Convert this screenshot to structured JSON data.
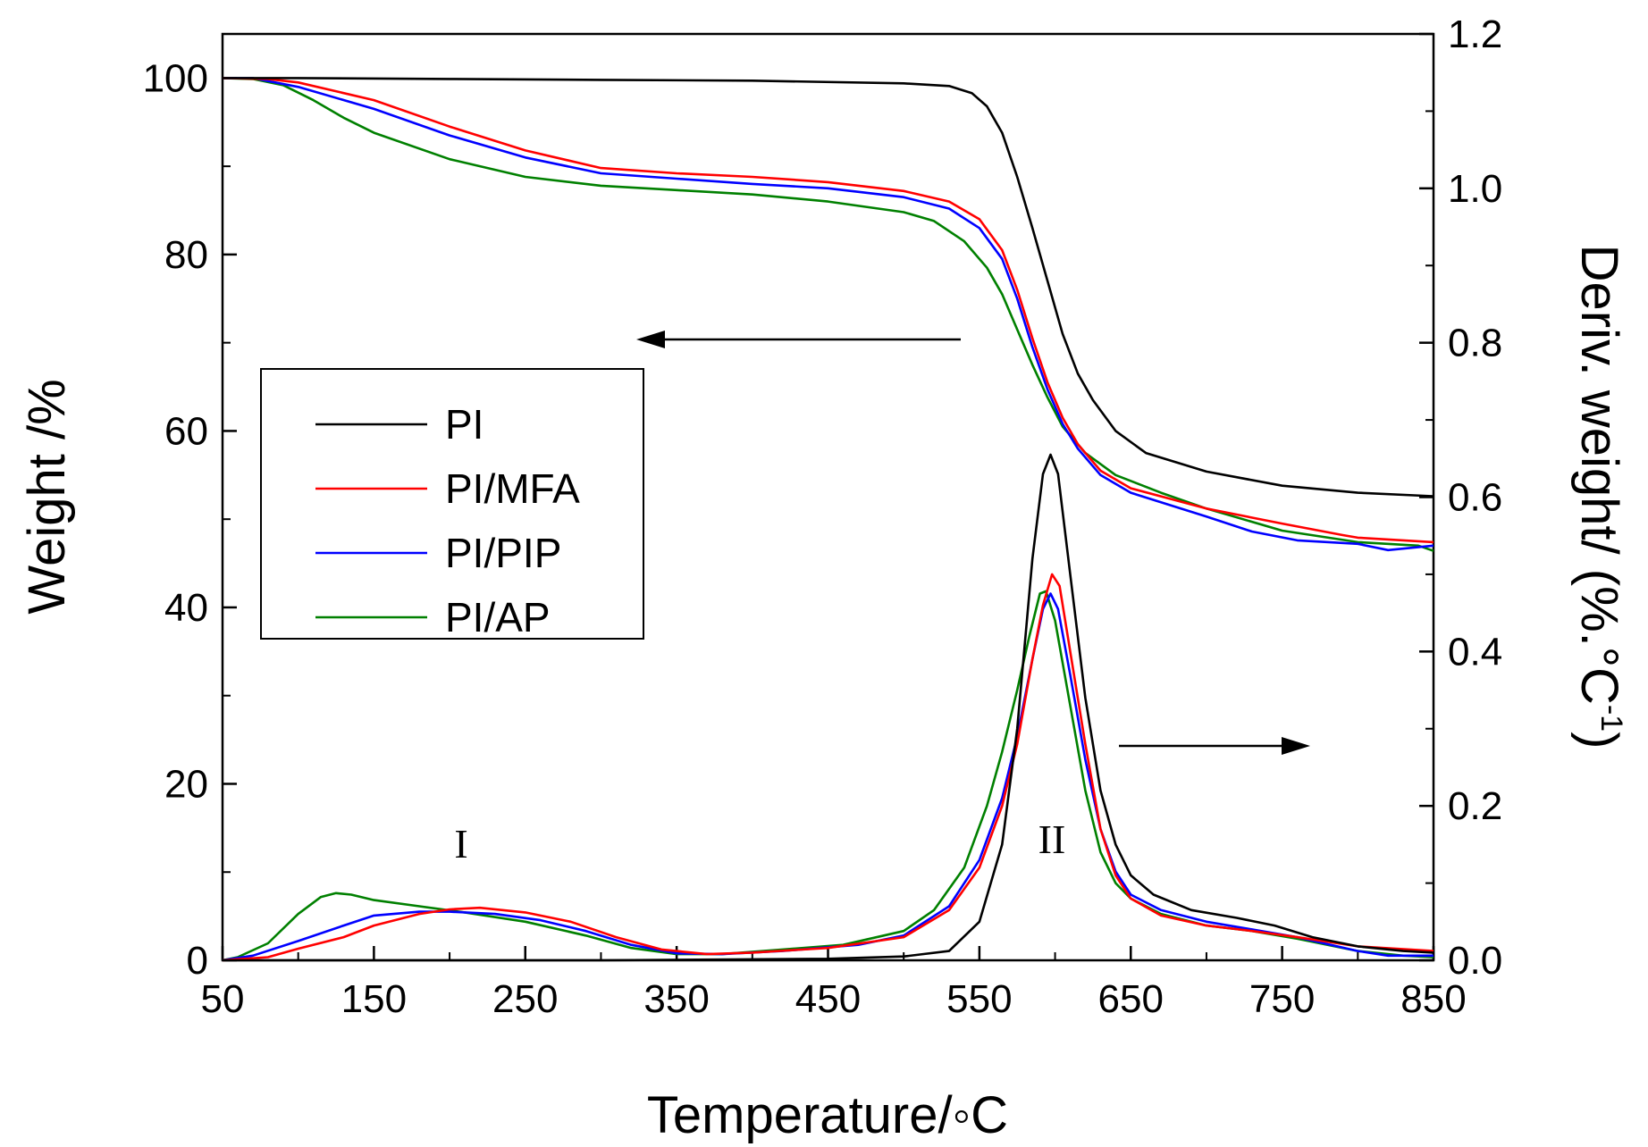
{
  "chart_data": {
    "type": "line",
    "title": "",
    "xlabel": "Temperature/◦C",
    "ylabel_left": "Weight /%",
    "ylabel_right_main": "Deriv. weight/ (%.°C",
    "ylabel_right_sup": "-1",
    "ylabel_right_close": ")",
    "xlim": [
      50,
      850
    ],
    "ylim_left": [
      0,
      105
    ],
    "ylim_right": [
      0,
      1.2
    ],
    "xticks": [
      "50",
      "150",
      "250",
      "350",
      "450",
      "550",
      "650",
      "750",
      "850"
    ],
    "yticks_left": [
      "0",
      "20",
      "40",
      "60",
      "80",
      "100"
    ],
    "yticks_right": [
      "0.0",
      "0.2",
      "0.4",
      "0.6",
      "0.8",
      "1.0",
      "1.2"
    ],
    "legend_position": "middle-left",
    "annotations": {
      "peak1": "I",
      "peak2": "II"
    },
    "colors": {
      "PI": "#000000",
      "PI/MFA": "#ff0000",
      "PI/PIP": "#0000ff",
      "PI/AP": "#008000"
    },
    "series": [
      {
        "name": "PI",
        "color": "#000000",
        "weight": [
          [
            50,
            100
          ],
          [
            100,
            100
          ],
          [
            200,
            99.9
          ],
          [
            300,
            99.8
          ],
          [
            400,
            99.7
          ],
          [
            500,
            99.4
          ],
          [
            530,
            99.1
          ],
          [
            545,
            98.3
          ],
          [
            555,
            96.8
          ],
          [
            565,
            93.8
          ],
          [
            575,
            88.8
          ],
          [
            585,
            83
          ],
          [
            595,
            77
          ],
          [
            605,
            71
          ],
          [
            615,
            66.5
          ],
          [
            625,
            63.5
          ],
          [
            640,
            60
          ],
          [
            660,
            57.5
          ],
          [
            700,
            55.4
          ],
          [
            750,
            53.8
          ],
          [
            800,
            53
          ],
          [
            850,
            52.6
          ]
        ],
        "deriv": [
          [
            50,
            0
          ],
          [
            300,
            0
          ],
          [
            450,
            0.002
          ],
          [
            500,
            0.005
          ],
          [
            530,
            0.012
          ],
          [
            550,
            0.05
          ],
          [
            565,
            0.15
          ],
          [
            575,
            0.3
          ],
          [
            585,
            0.52
          ],
          [
            592,
            0.63
          ],
          [
            597,
            0.655
          ],
          [
            602,
            0.63
          ],
          [
            610,
            0.5
          ],
          [
            620,
            0.34
          ],
          [
            630,
            0.22
          ],
          [
            640,
            0.15
          ],
          [
            650,
            0.11
          ],
          [
            665,
            0.085
          ],
          [
            690,
            0.065
          ],
          [
            720,
            0.055
          ],
          [
            745,
            0.045
          ],
          [
            770,
            0.03
          ],
          [
            800,
            0.018
          ],
          [
            830,
            0.012
          ],
          [
            850,
            0.01
          ]
        ]
      },
      {
        "name": "PI/MFA",
        "color": "#ff0000",
        "weight": [
          [
            50,
            100
          ],
          [
            80,
            99.9
          ],
          [
            100,
            99.5
          ],
          [
            150,
            97.5
          ],
          [
            200,
            94.5
          ],
          [
            250,
            91.8
          ],
          [
            300,
            89.8
          ],
          [
            350,
            89.2
          ],
          [
            400,
            88.8
          ],
          [
            450,
            88.2
          ],
          [
            500,
            87.2
          ],
          [
            530,
            86
          ],
          [
            550,
            84
          ],
          [
            565,
            80.5
          ],
          [
            575,
            76
          ],
          [
            585,
            70.5
          ],
          [
            595,
            65.5
          ],
          [
            605,
            61.5
          ],
          [
            615,
            58.5
          ],
          [
            630,
            55.5
          ],
          [
            650,
            53.5
          ],
          [
            700,
            51.2
          ],
          [
            750,
            49.5
          ],
          [
            790,
            48.2
          ],
          [
            800,
            47.9
          ],
          [
            850,
            47.4
          ]
        ],
        "deriv": [
          [
            50,
            0
          ],
          [
            80,
            0.004
          ],
          [
            100,
            0.015
          ],
          [
            130,
            0.03
          ],
          [
            150,
            0.045
          ],
          [
            180,
            0.06
          ],
          [
            200,
            0.066
          ],
          [
            220,
            0.068
          ],
          [
            250,
            0.062
          ],
          [
            280,
            0.05
          ],
          [
            310,
            0.03
          ],
          [
            340,
            0.014
          ],
          [
            370,
            0.008
          ],
          [
            400,
            0.01
          ],
          [
            450,
            0.016
          ],
          [
            500,
            0.03
          ],
          [
            530,
            0.065
          ],
          [
            550,
            0.12
          ],
          [
            565,
            0.2
          ],
          [
            575,
            0.28
          ],
          [
            585,
            0.39
          ],
          [
            592,
            0.46
          ],
          [
            598,
            0.5
          ],
          [
            603,
            0.485
          ],
          [
            610,
            0.4
          ],
          [
            620,
            0.28
          ],
          [
            630,
            0.17
          ],
          [
            640,
            0.11
          ],
          [
            650,
            0.08
          ],
          [
            670,
            0.058
          ],
          [
            700,
            0.045
          ],
          [
            730,
            0.038
          ],
          [
            760,
            0.03
          ],
          [
            800,
            0.018
          ],
          [
            850,
            0.012
          ]
        ]
      },
      {
        "name": "PI/PIP",
        "color": "#0000ff",
        "weight": [
          [
            50,
            100
          ],
          [
            70,
            100
          ],
          [
            100,
            99
          ],
          [
            150,
            96.5
          ],
          [
            200,
            93.5
          ],
          [
            250,
            91
          ],
          [
            300,
            89.2
          ],
          [
            350,
            88.6
          ],
          [
            400,
            88
          ],
          [
            450,
            87.5
          ],
          [
            500,
            86.5
          ],
          [
            530,
            85.2
          ],
          [
            550,
            83
          ],
          [
            565,
            79.5
          ],
          [
            575,
            75
          ],
          [
            585,
            69.5
          ],
          [
            595,
            64.7
          ],
          [
            605,
            60.8
          ],
          [
            615,
            58
          ],
          [
            630,
            55
          ],
          [
            650,
            53
          ],
          [
            700,
            50.3
          ],
          [
            730,
            48.6
          ],
          [
            760,
            47.6
          ],
          [
            800,
            47.2
          ],
          [
            820,
            46.5
          ],
          [
            850,
            47
          ]
        ],
        "deriv": [
          [
            50,
            0
          ],
          [
            70,
            0.006
          ],
          [
            100,
            0.025
          ],
          [
            130,
            0.045
          ],
          [
            150,
            0.058
          ],
          [
            180,
            0.063
          ],
          [
            200,
            0.063
          ],
          [
            230,
            0.06
          ],
          [
            260,
            0.052
          ],
          [
            290,
            0.038
          ],
          [
            320,
            0.02
          ],
          [
            350,
            0.009
          ],
          [
            380,
            0.008
          ],
          [
            420,
            0.012
          ],
          [
            470,
            0.02
          ],
          [
            500,
            0.032
          ],
          [
            530,
            0.07
          ],
          [
            550,
            0.13
          ],
          [
            565,
            0.21
          ],
          [
            575,
            0.29
          ],
          [
            585,
            0.39
          ],
          [
            592,
            0.455
          ],
          [
            597,
            0.475
          ],
          [
            602,
            0.455
          ],
          [
            610,
            0.37
          ],
          [
            620,
            0.26
          ],
          [
            630,
            0.17
          ],
          [
            640,
            0.115
          ],
          [
            650,
            0.085
          ],
          [
            670,
            0.065
          ],
          [
            700,
            0.05
          ],
          [
            730,
            0.04
          ],
          [
            760,
            0.03
          ],
          [
            800,
            0.012
          ],
          [
            820,
            0.006
          ],
          [
            850,
            0.006
          ]
        ]
      },
      {
        "name": "PI/AP",
        "color": "#008000",
        "weight": [
          [
            50,
            100
          ],
          [
            70,
            99.9
          ],
          [
            90,
            99.2
          ],
          [
            110,
            97.5
          ],
          [
            130,
            95.5
          ],
          [
            150,
            93.8
          ],
          [
            200,
            90.8
          ],
          [
            250,
            88.8
          ],
          [
            300,
            87.8
          ],
          [
            350,
            87.3
          ],
          [
            400,
            86.8
          ],
          [
            450,
            86
          ],
          [
            500,
            84.8
          ],
          [
            520,
            83.8
          ],
          [
            540,
            81.5
          ],
          [
            555,
            78.5
          ],
          [
            565,
            75.5
          ],
          [
            575,
            71.5
          ],
          [
            585,
            67.5
          ],
          [
            595,
            63.8
          ],
          [
            605,
            60.5
          ],
          [
            620,
            57.5
          ],
          [
            640,
            55
          ],
          [
            670,
            53
          ],
          [
            700,
            51.2
          ],
          [
            750,
            48.7
          ],
          [
            800,
            47.4
          ],
          [
            840,
            47
          ],
          [
            850,
            46.4
          ]
        ],
        "deriv": [
          [
            50,
            0
          ],
          [
            60,
            0.004
          ],
          [
            80,
            0.022
          ],
          [
            100,
            0.06
          ],
          [
            115,
            0.082
          ],
          [
            125,
            0.087
          ],
          [
            135,
            0.085
          ],
          [
            150,
            0.078
          ],
          [
            180,
            0.07
          ],
          [
            210,
            0.062
          ],
          [
            250,
            0.05
          ],
          [
            290,
            0.032
          ],
          [
            320,
            0.016
          ],
          [
            350,
            0.008
          ],
          [
            380,
            0.008
          ],
          [
            420,
            0.014
          ],
          [
            460,
            0.02
          ],
          [
            500,
            0.038
          ],
          [
            520,
            0.065
          ],
          [
            540,
            0.12
          ],
          [
            555,
            0.2
          ],
          [
            565,
            0.27
          ],
          [
            575,
            0.35
          ],
          [
            583,
            0.42
          ],
          [
            590,
            0.475
          ],
          [
            594,
            0.478
          ],
          [
            600,
            0.44
          ],
          [
            610,
            0.33
          ],
          [
            620,
            0.22
          ],
          [
            630,
            0.14
          ],
          [
            640,
            0.1
          ],
          [
            650,
            0.08
          ],
          [
            670,
            0.06
          ],
          [
            700,
            0.045
          ],
          [
            730,
            0.038
          ],
          [
            760,
            0.028
          ],
          [
            800,
            0.012
          ],
          [
            830,
            0.006
          ],
          [
            850,
            0.004
          ]
        ]
      }
    ]
  }
}
